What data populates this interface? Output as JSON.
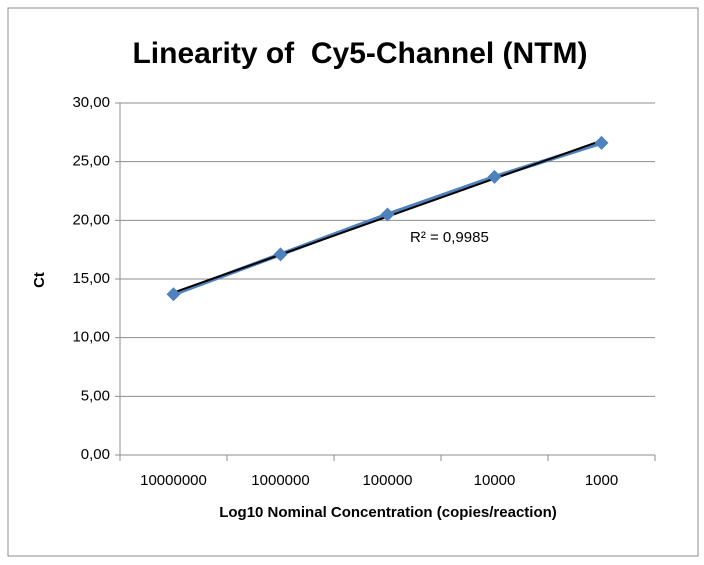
{
  "chart_data": {
    "type": "line",
    "title": "Linearity of  Cy5-Channel (NTM)",
    "x_label": "Log10 Nominal Concentration (copies/reaction)",
    "y_label": "Ct",
    "annotation": "R² = 0,9985",
    "categories": [
      "10000000",
      "1000000",
      "100000",
      "10000",
      "1000"
    ],
    "series": [
      {
        "name": "Ct",
        "color": "#4f81bd",
        "values": [
          13.7,
          17.1,
          20.5,
          23.7,
          26.6
        ]
      }
    ],
    "trendline_color": "#000000",
    "ylim": [
      0,
      30
    ],
    "yticks": [
      {
        "value": 0,
        "label": "0,00"
      },
      {
        "value": 5,
        "label": "5,00"
      },
      {
        "value": 10,
        "label": "10,00"
      },
      {
        "value": 15,
        "label": "15,00"
      },
      {
        "value": 20,
        "label": "20,00"
      },
      {
        "value": 25,
        "label": "25,00"
      },
      {
        "value": 30,
        "label": "30,00"
      }
    ],
    "grid": true
  }
}
